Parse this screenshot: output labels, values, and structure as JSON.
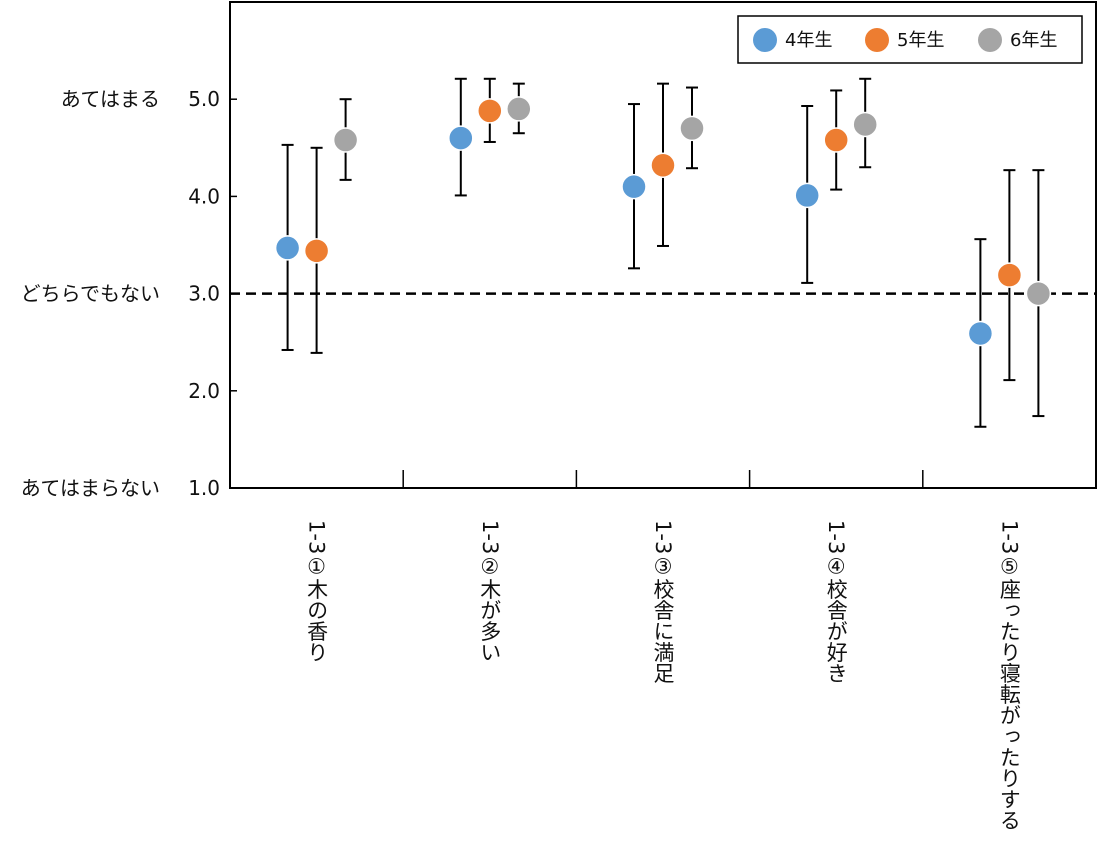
{
  "chart_data": {
    "type": "scatter",
    "subtype": "dot-with-error-bars",
    "title": "",
    "xlabel": "",
    "ylabel": "",
    "ylim": [
      1.0,
      6.0
    ],
    "yticks": [
      1.0,
      2.0,
      3.0,
      4.0,
      5.0
    ],
    "ytick_labels": [
      "1.0",
      "2.0",
      "3.0",
      "4.0",
      "5.0"
    ],
    "y_anchor_labels": [
      {
        "value": 5.0,
        "text": "あてはまる"
      },
      {
        "value": 3.0,
        "text": "どちらでもない"
      },
      {
        "value": 1.0,
        "text": "あてはまらない"
      }
    ],
    "reference_line": {
      "value": 3.0,
      "style": "dashed"
    },
    "categories": [
      "1-3①木の香り",
      "1-3②木が多い",
      "1-3③校舎に満足",
      "1-3④校舎が好き",
      "1-3⑤座ったり寝転がったりする"
    ],
    "series": [
      {
        "name": "4年生",
        "color": "#5b9bd5",
        "values": [
          3.47,
          4.6,
          4.1,
          4.01,
          2.59
        ],
        "error_low": [
          2.42,
          4.01,
          3.26,
          3.11,
          1.63
        ],
        "error_high": [
          4.53,
          5.21,
          4.95,
          4.93,
          3.56
        ]
      },
      {
        "name": "5年生",
        "color": "#ed7d31",
        "values": [
          3.44,
          4.88,
          4.32,
          4.58,
          3.19
        ],
        "error_low": [
          2.39,
          4.56,
          3.49,
          4.07,
          2.11
        ],
        "error_high": [
          4.5,
          5.21,
          5.16,
          5.09,
          4.27
        ]
      },
      {
        "name": "6年生",
        "color": "#a5a5a5",
        "values": [
          4.58,
          4.9,
          4.7,
          4.74,
          3.0
        ],
        "error_low": [
          4.17,
          4.65,
          4.29,
          4.3,
          1.74
        ],
        "error_high": [
          5.0,
          5.16,
          5.12,
          5.21,
          4.27
        ]
      }
    ],
    "legend": {
      "position": "top-right"
    },
    "grid": false
  }
}
